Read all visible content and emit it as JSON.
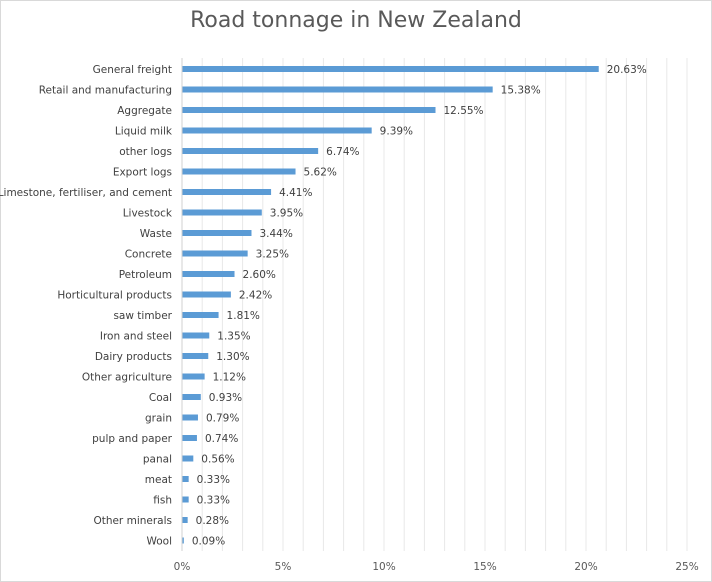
{
  "chart_data": {
    "type": "bar",
    "orientation": "horizontal",
    "title": "Road tonnage in New Zealand",
    "xlabel": "",
    "ylabel": "",
    "xlim": [
      0,
      25
    ],
    "x_ticks": [
      "0%",
      "5%",
      "10%",
      "15%",
      "20%",
      "25%"
    ],
    "grid": true,
    "legend": "none",
    "bar_color": "#5b9bd5",
    "categories": [
      "General freight",
      "Retail and manufacturing",
      "Aggregate",
      "Liquid milk",
      "other logs",
      "Export logs",
      "Limestone, fertiliser, and cement",
      "Livestock",
      "Waste",
      "Concrete",
      "Petroleum",
      "Horticultural products",
      "saw timber",
      "Iron and steel",
      "Dairy products",
      "Other agriculture",
      "Coal",
      "grain",
      "pulp and paper",
      "panal",
      "meat",
      "fish",
      "Other minerals",
      "Wool"
    ],
    "values": [
      20.63,
      15.38,
      12.55,
      9.39,
      6.74,
      5.62,
      4.41,
      3.95,
      3.44,
      3.25,
      2.6,
      2.42,
      1.81,
      1.35,
      1.3,
      1.12,
      0.93,
      0.79,
      0.74,
      0.56,
      0.33,
      0.33,
      0.28,
      0.09
    ],
    "value_labels": [
      "20.63%",
      "15.38%",
      "12.55%",
      "9.39%",
      "6.74%",
      "5.62%",
      "4.41%",
      "3.95%",
      "3.44%",
      "3.25%",
      "2.60%",
      "2.42%",
      "1.81%",
      "1.35%",
      "1.30%",
      "1.12%",
      "0.93%",
      "0.79%",
      "0.74%",
      "0.56%",
      "0.33%",
      "0.33%",
      "0.28%",
      "0.09%"
    ]
  }
}
